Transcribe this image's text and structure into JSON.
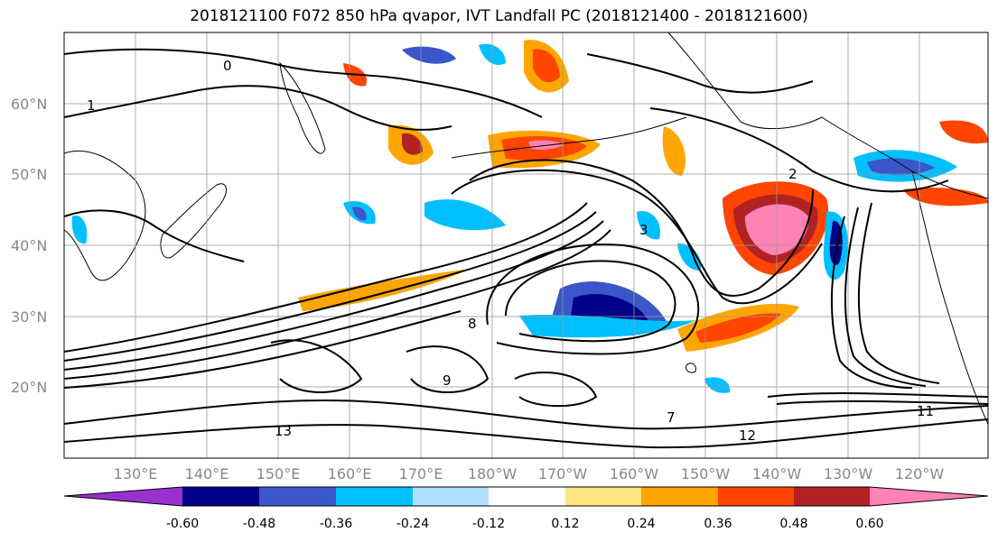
{
  "title": "2018121100 F072 850 hPa qvapor, IVT Landfall PC (2018121400 - 2018121600)",
  "lat_labels": [
    "60°N",
    "50°N",
    "40°N",
    "30°N",
    "20°N"
  ],
  "lon_labels": [
    "130°E",
    "140°E",
    "150°E",
    "160°E",
    "170°E",
    "180°W",
    "170°W",
    "160°W",
    "150°W",
    "140°W",
    "130°W",
    "120°W"
  ],
  "colorbar": {
    "colors": [
      "#9b30d0",
      "#00008b",
      "#3a56c8",
      "#00bfff",
      "#b0e0ff",
      "#ffffff",
      "#ffe680",
      "#ffa500",
      "#ff4500",
      "#b22222",
      "#ff82b4"
    ],
    "tick_labels": [
      "-0.60",
      "-0.48",
      "-0.36",
      "-0.24",
      "-0.12",
      "0.12",
      "0.24",
      "0.36",
      "0.48",
      "0.60"
    ],
    "extend": "both"
  },
  "contour_labels": [
    "1",
    "0",
    "2",
    "3",
    "8",
    "9",
    "7",
    "12",
    "13",
    "11"
  ],
  "gridlines": true
}
